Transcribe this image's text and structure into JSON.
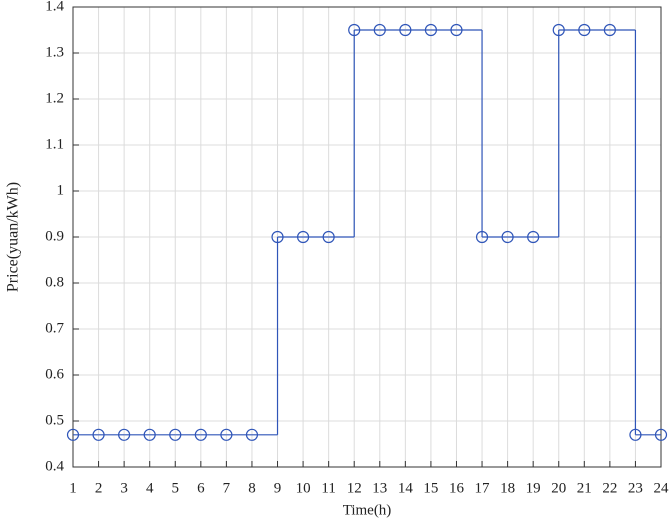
{
  "chart_data": {
    "type": "stairs",
    "x_label": "Time(h)",
    "y_label": "Price(yuan/kWh)",
    "x": [
      1,
      2,
      3,
      4,
      5,
      6,
      7,
      8,
      9,
      10,
      11,
      12,
      13,
      14,
      15,
      16,
      17,
      18,
      19,
      20,
      21,
      22,
      23,
      24
    ],
    "series": [
      {
        "color": "#2f55b8",
        "values": [
          0.47,
          0.47,
          0.47,
          0.47,
          0.47,
          0.47,
          0.47,
          0.47,
          0.9,
          0.9,
          0.9,
          1.35,
          1.35,
          1.35,
          1.35,
          1.35,
          0.9,
          0.9,
          0.9,
          1.35,
          1.35,
          1.35,
          0.47,
          0.47
        ]
      }
    ],
    "xlim": [
      1,
      24
    ],
    "xticks": [
      1,
      2,
      3,
      4,
      5,
      6,
      7,
      8,
      9,
      10,
      11,
      12,
      13,
      14,
      15,
      16,
      17,
      18,
      19,
      20,
      21,
      22,
      23,
      24
    ],
    "ylim": [
      0.4,
      1.4
    ],
    "yticks": [
      0.4,
      0.5,
      0.6,
      0.7,
      0.8,
      0.9,
      1,
      1.1,
      1.2,
      1.3,
      1.4
    ],
    "grid": true,
    "marker": "circle"
  }
}
